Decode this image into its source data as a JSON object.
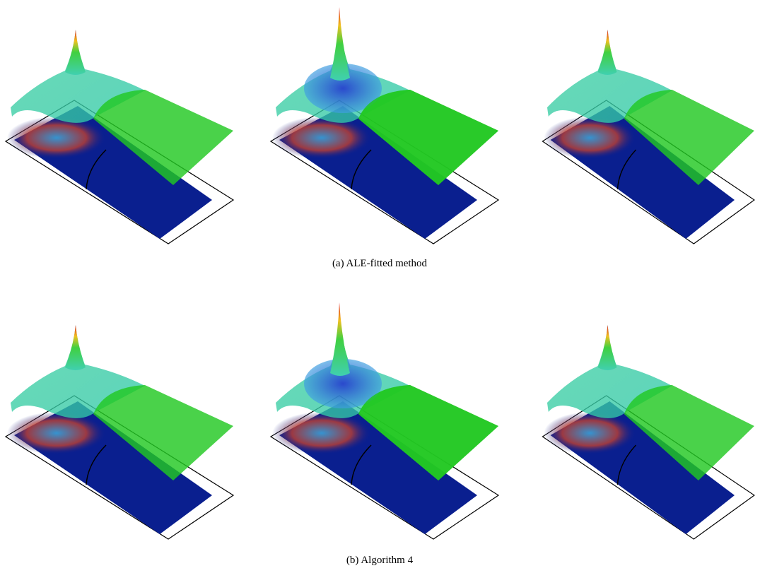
{
  "figure": {
    "panels": [
      {
        "caption": "(a) ALE-fitted method"
      },
      {
        "caption": "(b) Algorithm 4"
      }
    ]
  }
}
